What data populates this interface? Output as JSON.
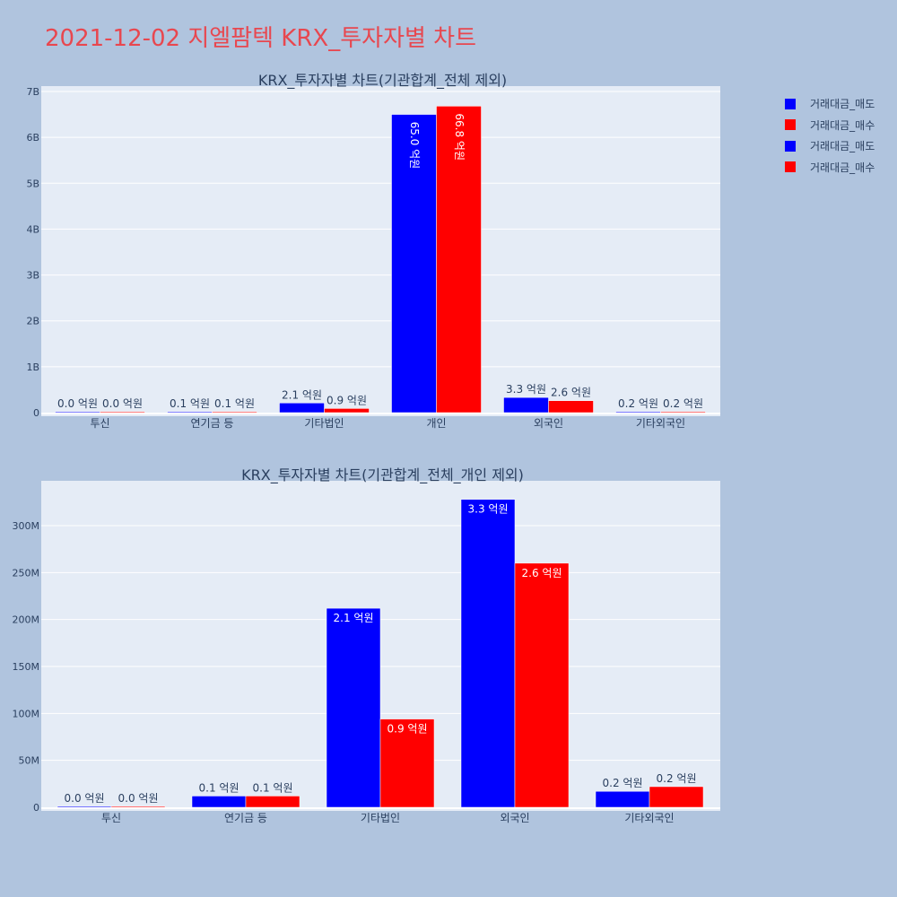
{
  "page": {
    "title": "2021-12-02 지엘팜텍 KRX_투자자별 차트"
  },
  "legend": [
    {
      "label": "거래대금_매도",
      "color": "#0000ff"
    },
    {
      "label": "거래대금_매수",
      "color": "#ff0000"
    },
    {
      "label": "거래대금_매도",
      "color": "#0000ff"
    },
    {
      "label": "거래대금_매수",
      "color": "#ff0000"
    }
  ],
  "chart_data": [
    {
      "type": "bar",
      "title": "KRX_투자자별 차트(기관합계_전체 제외)",
      "categories": [
        "투신",
        "연기금 등",
        "기타법인",
        "개인",
        "외국인",
        "기타외국인"
      ],
      "series": [
        {
          "name": "거래대금_매도",
          "color": "#0000ff",
          "values": [
            0,
            10000000,
            210000000,
            6500000000,
            330000000,
            20000000
          ],
          "labels": [
            "0.0 억원",
            "0.1 억원",
            "2.1 억원",
            "65.0 억원",
            "3.3 억원",
            "0.2 억원"
          ]
        },
        {
          "name": "거래대금_매수",
          "color": "#ff0000",
          "values": [
            0,
            10000000,
            90000000,
            6680000000,
            260000000,
            20000000
          ],
          "labels": [
            "0.0 억원",
            "0.1 억원",
            "0.9 억원",
            "66.8 억원",
            "2.6 억원",
            "0.2 억원"
          ]
        }
      ],
      "ylim": [
        0,
        7000000000
      ],
      "yticks": [
        0,
        1000000000,
        2000000000,
        3000000000,
        4000000000,
        5000000000,
        6000000000,
        7000000000
      ],
      "ytick_labels": [
        "0",
        "1B",
        "2B",
        "3B",
        "4B",
        "5B",
        "6B",
        "7B"
      ],
      "grid": true,
      "legend_position": "top-right"
    },
    {
      "type": "bar",
      "title": "KRX_투자자별 차트(기관합계_전체_개인 제외)",
      "categories": [
        "투신",
        "연기금 등",
        "기타법인",
        "외국인",
        "기타외국인"
      ],
      "series": [
        {
          "name": "거래대금_매도",
          "color": "#0000ff",
          "values": [
            1000000,
            12000000,
            212000000,
            328000000,
            17000000
          ],
          "labels": [
            "0.0 억원",
            "0.1 억원",
            "2.1 억원",
            "3.3 억원",
            "0.2 억원"
          ]
        },
        {
          "name": "거래대금_매수",
          "color": "#ff0000",
          "values": [
            1000000,
            12000000,
            94000000,
            260000000,
            22000000
          ],
          "labels": [
            "0.0 억원",
            "0.1 억원",
            "0.9 억원",
            "2.6 억원",
            "0.2 억원"
          ]
        }
      ],
      "ylim": [
        0,
        347000000
      ],
      "yticks": [
        0,
        50000000,
        100000000,
        150000000,
        200000000,
        250000000,
        300000000
      ],
      "ytick_labels": [
        "0",
        "50M",
        "100M",
        "150M",
        "200M",
        "250M",
        "300M"
      ],
      "grid": true
    }
  ]
}
